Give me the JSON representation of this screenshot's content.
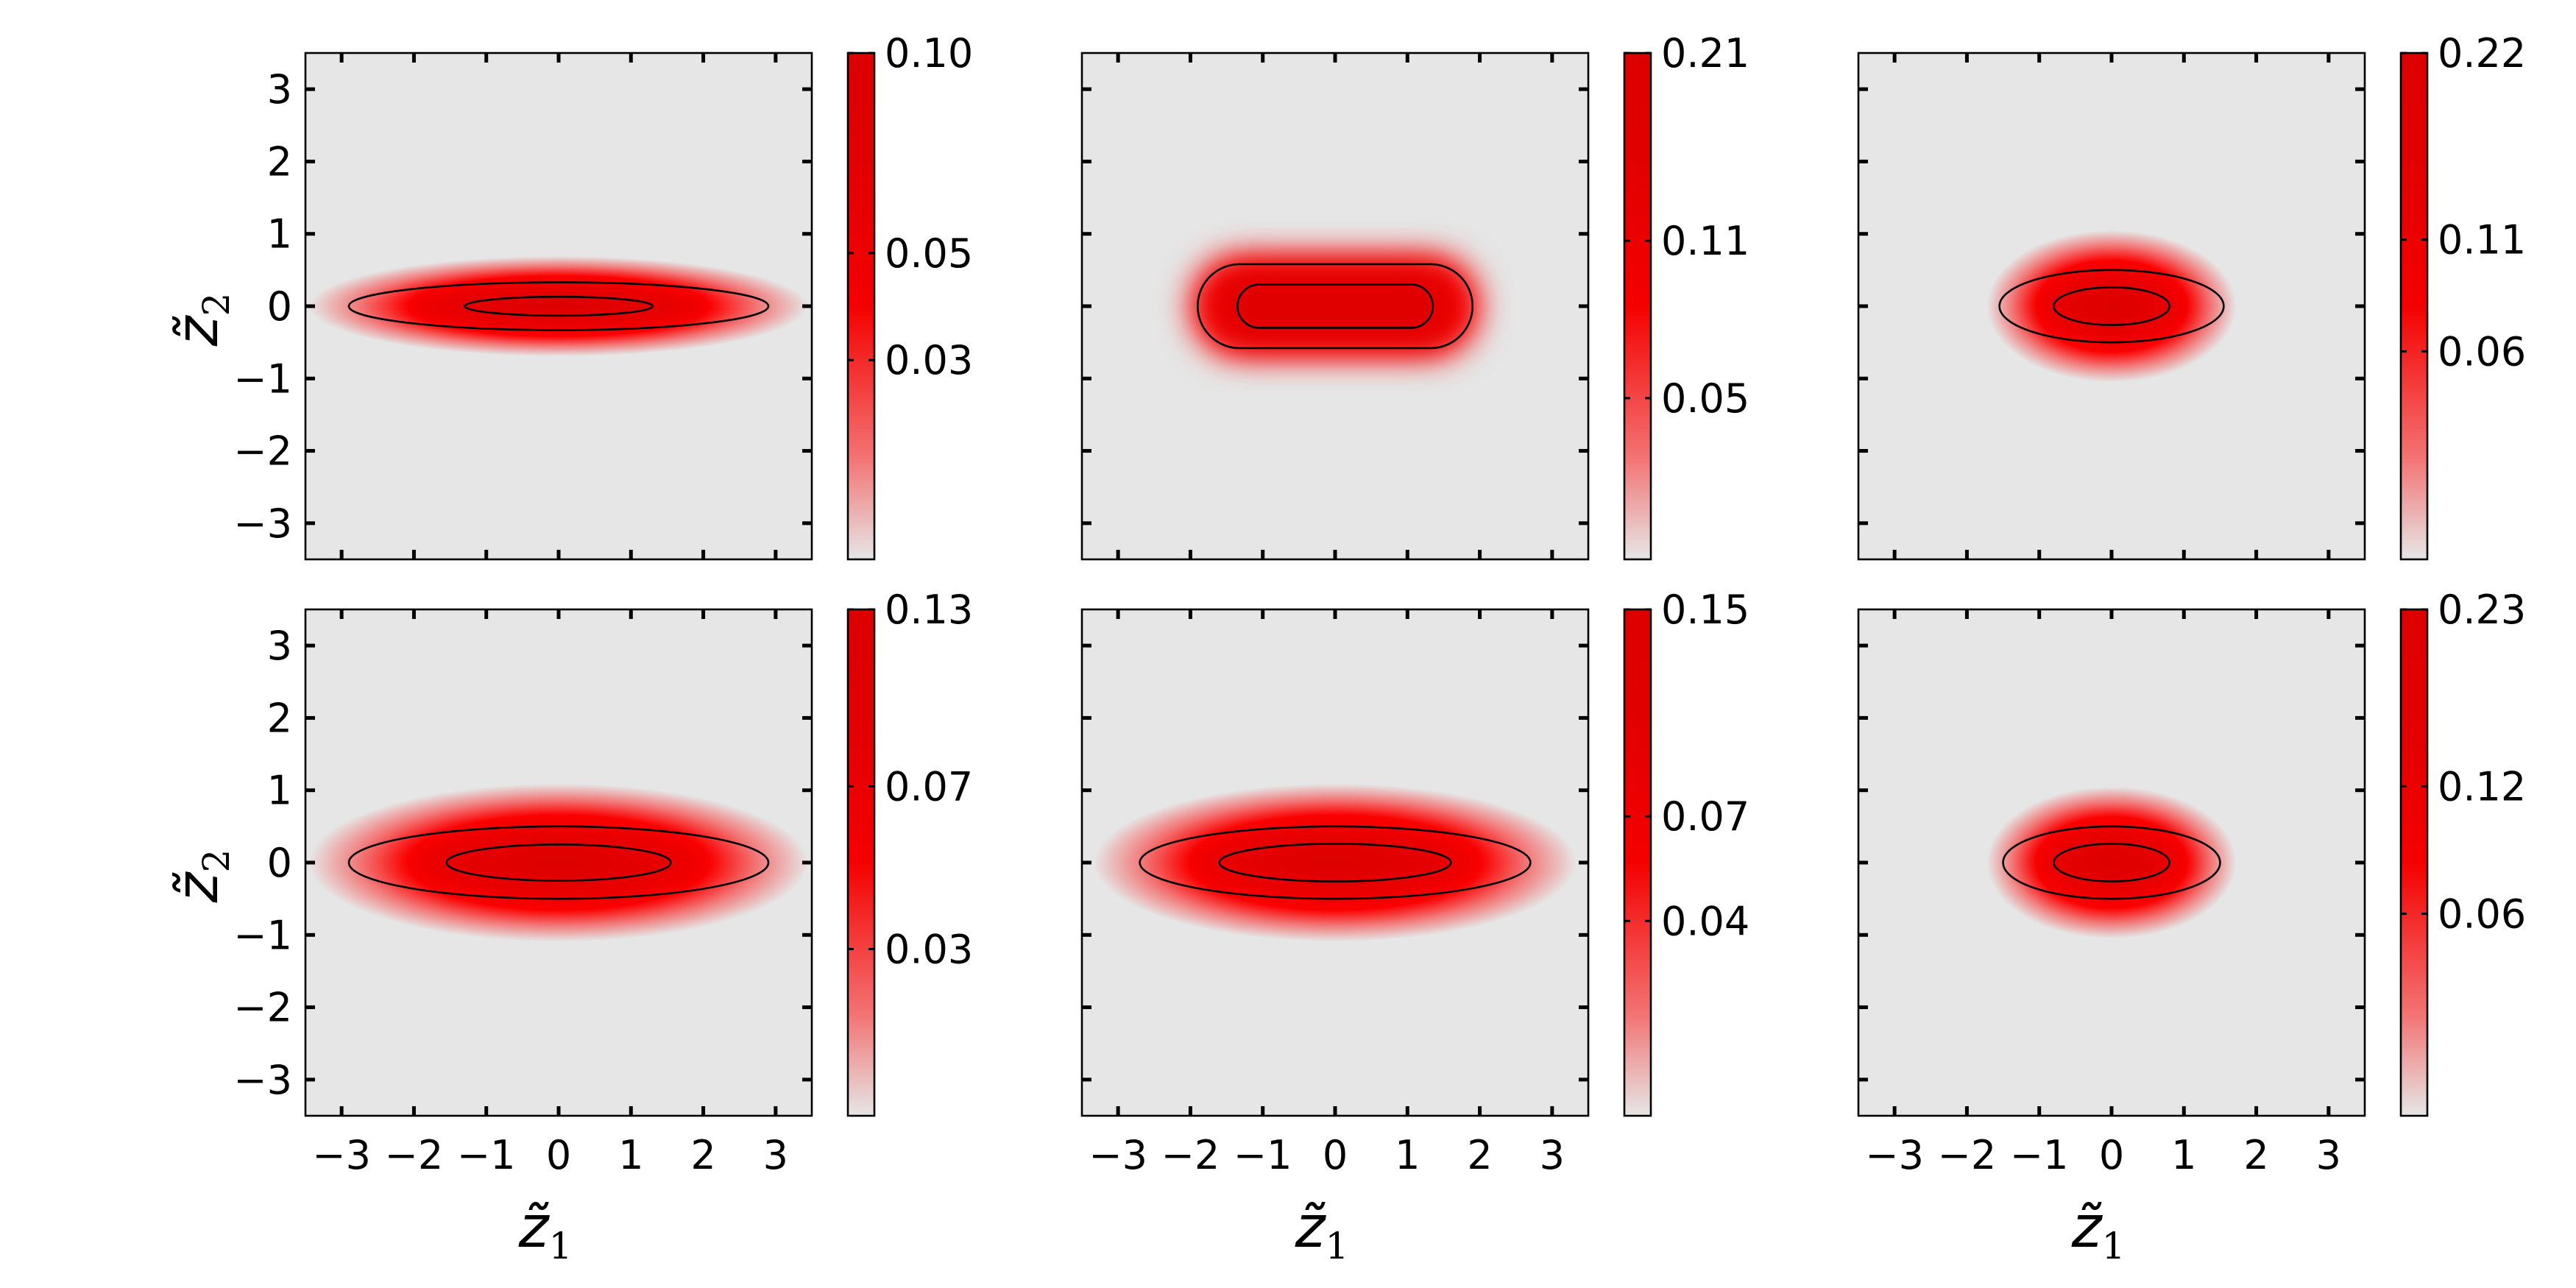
{
  "chart_data": [
    {
      "type": "heatmap",
      "row": 0,
      "col": 0,
      "xlim": [
        -3.5,
        3.5
      ],
      "ylim": [
        -3.5,
        3.5
      ],
      "xticks": [
        -3,
        -2,
        -1,
        0,
        1,
        2,
        3
      ],
      "yticks": [
        -3,
        -2,
        -1,
        0,
        1,
        2,
        3
      ],
      "xlabel": "",
      "ylabel": "z̃₂",
      "show_xticklabels": false,
      "show_yticklabels": true,
      "density": {
        "sx": 3.0,
        "sy": 0.33,
        "shape": "ellipse"
      },
      "contours": [
        {
          "rx": 2.9,
          "ry": 0.33
        },
        {
          "rx": 1.3,
          "ry": 0.13
        }
      ],
      "colorbar": {
        "min": 0.01,
        "max": 0.1,
        "ticks": [
          0.1,
          0.05,
          0.03
        ],
        "tick_labels": [
          "0.10",
          "0.05",
          "0.03"
        ],
        "colors": [
          "#e6e6e6",
          "#ff0000",
          "#dd0000"
        ]
      }
    },
    {
      "type": "heatmap",
      "row": 0,
      "col": 1,
      "xlim": [
        -3.5,
        3.5
      ],
      "ylim": [
        -3.5,
        3.5
      ],
      "xticks": [
        -3,
        -2,
        -1,
        0,
        1,
        2,
        3
      ],
      "yticks": [
        -3,
        -2,
        -1,
        0,
        1,
        2,
        3
      ],
      "xlabel": "",
      "ylabel": "",
      "show_xticklabels": false,
      "show_yticklabels": false,
      "density": {
        "sx": 1.9,
        "sy": 0.62,
        "shape": "stadium"
      },
      "contours": [
        {
          "rx": 1.9,
          "ry": 0.58,
          "shape": "stadium"
        },
        {
          "rx": 1.35,
          "ry": 0.3,
          "shape": "stadium"
        }
      ],
      "colorbar": {
        "min": 0.02,
        "max": 0.21,
        "ticks": [
          0.21,
          0.11,
          0.05
        ],
        "tick_labels": [
          "0.21",
          "0.11",
          "0.05"
        ],
        "colors": [
          "#e6e6e6",
          "#ff0000",
          "#dd0000"
        ]
      }
    },
    {
      "type": "heatmap",
      "row": 0,
      "col": 2,
      "xlim": [
        -3.5,
        3.5
      ],
      "ylim": [
        -3.5,
        3.5
      ],
      "xticks": [
        -3,
        -2,
        -1,
        0,
        1,
        2,
        3
      ],
      "yticks": [
        -3,
        -2,
        -1,
        0,
        1,
        2,
        3
      ],
      "xlabel": "",
      "ylabel": "",
      "show_xticklabels": false,
      "show_yticklabels": false,
      "density": {
        "sx": 1.5,
        "sy": 0.5,
        "shape": "ellipse"
      },
      "contours": [
        {
          "rx": 1.55,
          "ry": 0.5
        },
        {
          "rx": 0.8,
          "ry": 0.26
        }
      ],
      "colorbar": {
        "min": 0.01,
        "max": 0.22,
        "ticks": [
          0.22,
          0.11,
          0.06
        ],
        "tick_labels": [
          "0.22",
          "0.11",
          "0.06"
        ],
        "colors": [
          "#e6e6e6",
          "#ff0000",
          "#dd0000"
        ]
      }
    },
    {
      "type": "heatmap",
      "row": 1,
      "col": 0,
      "xlim": [
        -3.5,
        3.5
      ],
      "ylim": [
        -3.5,
        3.5
      ],
      "xticks": [
        -3,
        -2,
        -1,
        0,
        1,
        2,
        3
      ],
      "yticks": [
        -3,
        -2,
        -1,
        0,
        1,
        2,
        3
      ],
      "xlabel": "z̃₁",
      "ylabel": "z̃₂",
      "show_xticklabels": true,
      "show_yticklabels": true,
      "density": {
        "sx": 3.0,
        "sy": 0.52,
        "shape": "ellipse"
      },
      "contours": [
        {
          "rx": 2.9,
          "ry": 0.5
        },
        {
          "rx": 1.55,
          "ry": 0.25
        }
      ],
      "colorbar": {
        "min": 0.01,
        "max": 0.13,
        "ticks": [
          0.13,
          0.07,
          0.03
        ],
        "tick_labels": [
          "0.13",
          "0.07",
          "0.03"
        ],
        "colors": [
          "#e6e6e6",
          "#ff0000",
          "#dd0000"
        ]
      }
    },
    {
      "type": "heatmap",
      "row": 1,
      "col": 1,
      "xlim": [
        -3.5,
        3.5
      ],
      "ylim": [
        -3.5,
        3.5
      ],
      "xticks": [
        -3,
        -2,
        -1,
        0,
        1,
        2,
        3
      ],
      "yticks": [
        -3,
        -2,
        -1,
        0,
        1,
        2,
        3
      ],
      "xlabel": "z̃₁",
      "ylabel": "",
      "show_xticklabels": true,
      "show_yticklabels": false,
      "density": {
        "sx": 2.9,
        "sy": 0.52,
        "shape": "ellipse"
      },
      "contours": [
        {
          "rx": 2.7,
          "ry": 0.5
        },
        {
          "rx": 1.6,
          "ry": 0.26
        }
      ],
      "colorbar": {
        "min": 0.01,
        "max": 0.15,
        "ticks": [
          0.15,
          0.07,
          0.04
        ],
        "tick_labels": [
          "0.15",
          "0.07",
          "0.04"
        ],
        "colors": [
          "#e6e6e6",
          "#ff0000",
          "#dd0000"
        ]
      }
    },
    {
      "type": "heatmap",
      "row": 1,
      "col": 2,
      "xlim": [
        -3.5,
        3.5
      ],
      "ylim": [
        -3.5,
        3.5
      ],
      "xticks": [
        -3,
        -2,
        -1,
        0,
        1,
        2,
        3
      ],
      "yticks": [
        -3,
        -2,
        -1,
        0,
        1,
        2,
        3
      ],
      "xlabel": "z̃₁",
      "ylabel": "",
      "show_xticklabels": true,
      "show_yticklabels": false,
      "density": {
        "sx": 1.5,
        "sy": 0.5,
        "shape": "ellipse"
      },
      "contours": [
        {
          "rx": 1.5,
          "ry": 0.5
        },
        {
          "rx": 0.8,
          "ry": 0.26
        }
      ],
      "colorbar": {
        "min": 0.01,
        "max": 0.23,
        "ticks": [
          0.23,
          0.12,
          0.06
        ],
        "tick_labels": [
          "0.23",
          "0.12",
          "0.06"
        ],
        "colors": [
          "#e6e6e6",
          "#ff0000",
          "#dd0000"
        ]
      }
    }
  ]
}
